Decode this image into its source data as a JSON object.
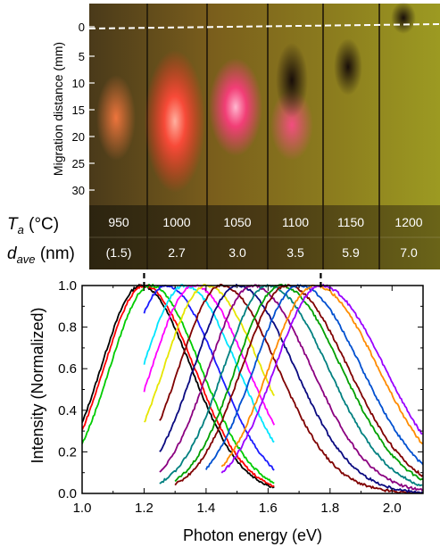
{
  "photo": {
    "y_axis_label": "Migration distance (mm)",
    "y_ticks": [
      "0",
      "5",
      "10",
      "15",
      "20",
      "25",
      "30"
    ],
    "row_ta_label": {
      "main": "T",
      "sub": "a",
      "rest": " (°C)"
    },
    "row_dave_label": {
      "main": "d",
      "sub": "ave",
      "rest": " (nm)"
    },
    "lanes": [
      {
        "ta": "950",
        "dave": "(1.5)"
      },
      {
        "ta": "1000",
        "dave": "2.7"
      },
      {
        "ta": "1050",
        "dave": "3.0"
      },
      {
        "ta": "1100",
        "dave": "3.5"
      },
      {
        "ta": "1150",
        "dave": "5.9"
      },
      {
        "ta": "1200",
        "dave": "7.0"
      }
    ]
  },
  "chart_data": {
    "type": "line",
    "xlabel": "Photon energy (eV)",
    "ylabel": "Intensity (Normalized)",
    "xlim": [
      1.0,
      2.1
    ],
    "ylim": [
      0.0,
      1.0
    ],
    "x_ticks": [
      "1.0",
      "1.2",
      "1.4",
      "1.6",
      "1.8",
      "2.0"
    ],
    "y_ticks": [
      "0.0",
      "0.2",
      "0.4",
      "0.6",
      "0.8",
      "1.0"
    ],
    "dashed_markers_x": [
      1.2,
      1.77
    ],
    "series": [
      {
        "color": "#000000",
        "peak": 1.19,
        "start": 1.0,
        "end": 1.62
      },
      {
        "color": "#ff0000",
        "peak": 1.2,
        "start": 1.0,
        "end": 1.62
      },
      {
        "color": "#00cc00",
        "peak": 1.22,
        "start": 1.0,
        "end": 1.62
      },
      {
        "color": "#1c1cff",
        "peak": 1.27,
        "start": 1.2,
        "end": 1.62
      },
      {
        "color": "#00e5ff",
        "peak": 1.33,
        "start": 1.2,
        "end": 1.62
      },
      {
        "color": "#ff00ff",
        "peak": 1.36,
        "start": 1.2,
        "end": 1.62
      },
      {
        "color": "#e6e600",
        "peak": 1.4,
        "start": 1.2,
        "end": 1.62
      },
      {
        "color": "#7f0000",
        "peak": 1.45,
        "start": 1.25,
        "end": 2.1
      },
      {
        "color": "#0a0a80",
        "peak": 1.5,
        "start": 1.25,
        "end": 2.1
      },
      {
        "color": "#8b0080",
        "peak": 1.55,
        "start": 1.25,
        "end": 2.1
      },
      {
        "color": "#008080",
        "peak": 1.6,
        "start": 1.25,
        "end": 2.1
      },
      {
        "color": "#00a000",
        "peak": 1.64,
        "start": 1.3,
        "end": 2.1
      },
      {
        "color": "#800000",
        "peak": 1.66,
        "start": 1.3,
        "end": 2.1
      },
      {
        "color": "#0050d0",
        "peak": 1.7,
        "start": 1.4,
        "end": 2.1
      },
      {
        "color": "#ff8c00",
        "peak": 1.75,
        "start": 1.45,
        "end": 2.1
      },
      {
        "color": "#9a00ff",
        "peak": 1.77,
        "start": 1.45,
        "end": 2.1
      }
    ]
  }
}
